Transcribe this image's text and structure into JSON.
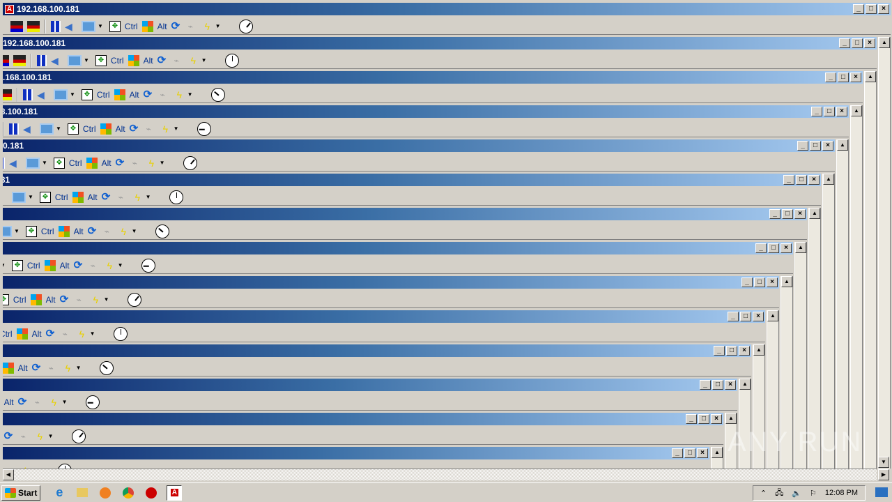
{
  "window": {
    "title": "192.168.100.181",
    "app_icon": "A",
    "minimize": "_",
    "maximize": "□",
    "close": "×"
  },
  "toolbar": {
    "ctrl_label": "Ctrl",
    "alt_label": "Alt",
    "icons": [
      "tools-icon",
      "tools-icon",
      "panel-icon",
      "speaker-icon",
      "monitor-icon",
      "dropdown-icon",
      "fullscreen-icon",
      "ctrl-key",
      "windows-key-icon",
      "alt-key",
      "refresh-icon",
      "plug-icon",
      "lightning-icon",
      "clock-icon"
    ]
  },
  "nesting_levels": 14,
  "taskbar": {
    "start_label": "Start",
    "apps": [
      "internet-explorer-icon",
      "file-explorer-icon",
      "media-player-icon",
      "chrome-icon",
      "opera-icon",
      "remote-desktop-icon"
    ],
    "time": "12:08 PM"
  },
  "watermark": "ANY RUN",
  "colors": {
    "title_start": "#0a246a",
    "title_end": "#a6caf0",
    "face": "#d4d0c8"
  }
}
